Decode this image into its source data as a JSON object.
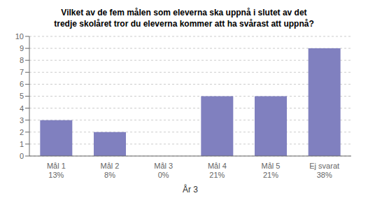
{
  "chart_data": {
    "type": "bar",
    "title": "Vilket av de fem målen som eleverna ska uppnå i slutet av det\ntredje skolåret tror du eleverna kommer att ha svårast att uppnå?",
    "categories": [
      "Mål 1\n13%",
      "Mål 2\n8%",
      "Mål 3\n0%",
      "Mål 4\n21%",
      "Mål 5\n21%",
      "Ej svarat\n38%"
    ],
    "values": [
      3,
      2,
      0,
      5,
      5,
      9
    ],
    "xlabel": "År 3",
    "color": "#8080bf",
    "ylim": [
      0,
      10
    ],
    "yticks": [
      0,
      1,
      2,
      3,
      4,
      5,
      6,
      7,
      8,
      9,
      10
    ],
    "grid": true
  }
}
